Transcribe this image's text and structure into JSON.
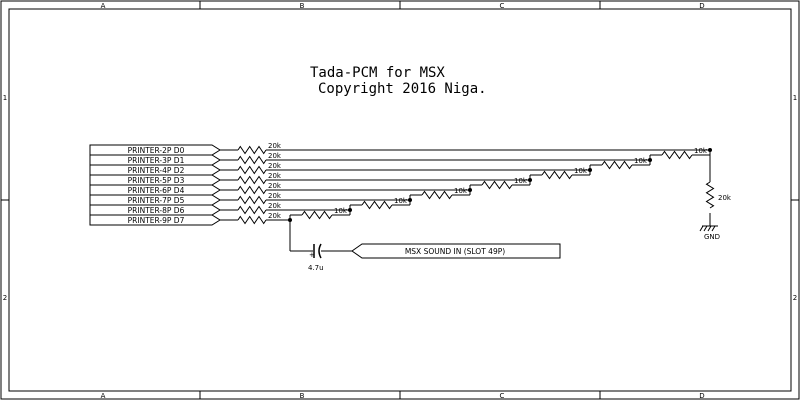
{
  "title": {
    "line1": "Tada-PCM for MSX",
    "line2": "Copyright 2016 Niga."
  },
  "zones": {
    "columns": [
      "A",
      "B",
      "C",
      "D"
    ],
    "rows": [
      "1",
      "2"
    ]
  },
  "ports": [
    "PRINTER-2P D0",
    "PRINTER-3P D1",
    "PRINTER-4P D2",
    "PRINTER-5P D3",
    "PRINTER-6P D4",
    "PRINTER-7P D5",
    "PRINTER-8P D6",
    "PRINTER-9P D7"
  ],
  "input_resistor_value": "20k",
  "ladder_resistor_value": "10k",
  "termination_resistor_value": "20k",
  "ground_label": "GND",
  "capacitor_value": "4.7u",
  "capacitor_polarity": "+",
  "output_label": "MSX SOUND IN (SLOT 49P)"
}
